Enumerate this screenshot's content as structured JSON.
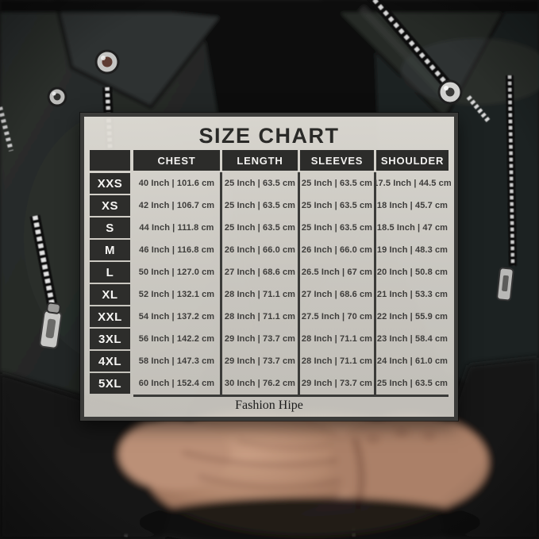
{
  "chart_data": {
    "type": "table",
    "title": "SIZE CHART",
    "columns": [
      "CHEST",
      "LENGTH",
      "SLEEVES",
      "SHOULDER"
    ],
    "rows": [
      {
        "size": "XXS",
        "chest": "40 Inch | 101.6 cm",
        "length": "25 Inch | 63.5 cm",
        "sleeves": "25 Inch | 63.5 cm",
        "shoulder": "17.5 Inch | 44.5 cm"
      },
      {
        "size": "XS",
        "chest": "42 Inch | 106.7 cm",
        "length": "25 Inch | 63.5 cm",
        "sleeves": "25 Inch | 63.5 cm",
        "shoulder": "18 Inch | 45.7 cm"
      },
      {
        "size": "S",
        "chest": "44 Inch | 111.8 cm",
        "length": "25 Inch | 63.5 cm",
        "sleeves": "25 Inch | 63.5 cm",
        "shoulder": "18.5 Inch | 47 cm"
      },
      {
        "size": "M",
        "chest": "46 Inch | 116.8 cm",
        "length": "26 Inch | 66.0 cm",
        "sleeves": "26 Inch | 66.0 cm",
        "shoulder": "19 Inch | 48.3 cm"
      },
      {
        "size": "L",
        "chest": "50 Inch | 127.0 cm",
        "length": "27 Inch | 68.6 cm",
        "sleeves": "26.5 Inch | 67 cm",
        "shoulder": "20 Inch | 50.8 cm"
      },
      {
        "size": "XL",
        "chest": "52 Inch | 132.1 cm",
        "length": "28 Inch | 71.1 cm",
        "sleeves": "27 Inch | 68.6 cm",
        "shoulder": "21 Inch | 53.3 cm"
      },
      {
        "size": "XXL",
        "chest": "54 Inch | 137.2 cm",
        "length": "28 Inch | 71.1 cm",
        "sleeves": "27.5 Inch | 70 cm",
        "shoulder": "22 Inch | 55.9 cm"
      },
      {
        "size": "3XL",
        "chest": "56 Inch | 142.2 cm",
        "length": "29 Inch | 73.7 cm",
        "sleeves": "28 Inch | 71.1 cm",
        "shoulder": "23 Inch | 58.4 cm"
      },
      {
        "size": "4XL",
        "chest": "58 Inch | 147.3 cm",
        "length": "29 Inch | 73.7 cm",
        "sleeves": "28 Inch | 71.1 cm",
        "shoulder": "24 Inch | 61.0 cm"
      },
      {
        "size": "5XL",
        "chest": "60 Inch | 152.4 cm",
        "length": "30 Inch | 76.2 cm",
        "sleeves": "29 Inch | 73.7 cm",
        "shoulder": "25 Inch | 63.5 cm"
      }
    ],
    "footer_brand": "Fashion Hipe",
    "layout_hints": {
      "header_position": "top",
      "size_labels_position": "left"
    }
  },
  "colors": {
    "panel_background": "#d8d5ce",
    "panel_border": "#3b3b39",
    "table_header_bg": "#2c2c2a",
    "size_label_bg": "#2d2d2b",
    "header_text": "#f3f2f0",
    "cell_text": "#3e3d3b",
    "photo_jacket": "#242826",
    "photo_skin": "#b58a70"
  }
}
